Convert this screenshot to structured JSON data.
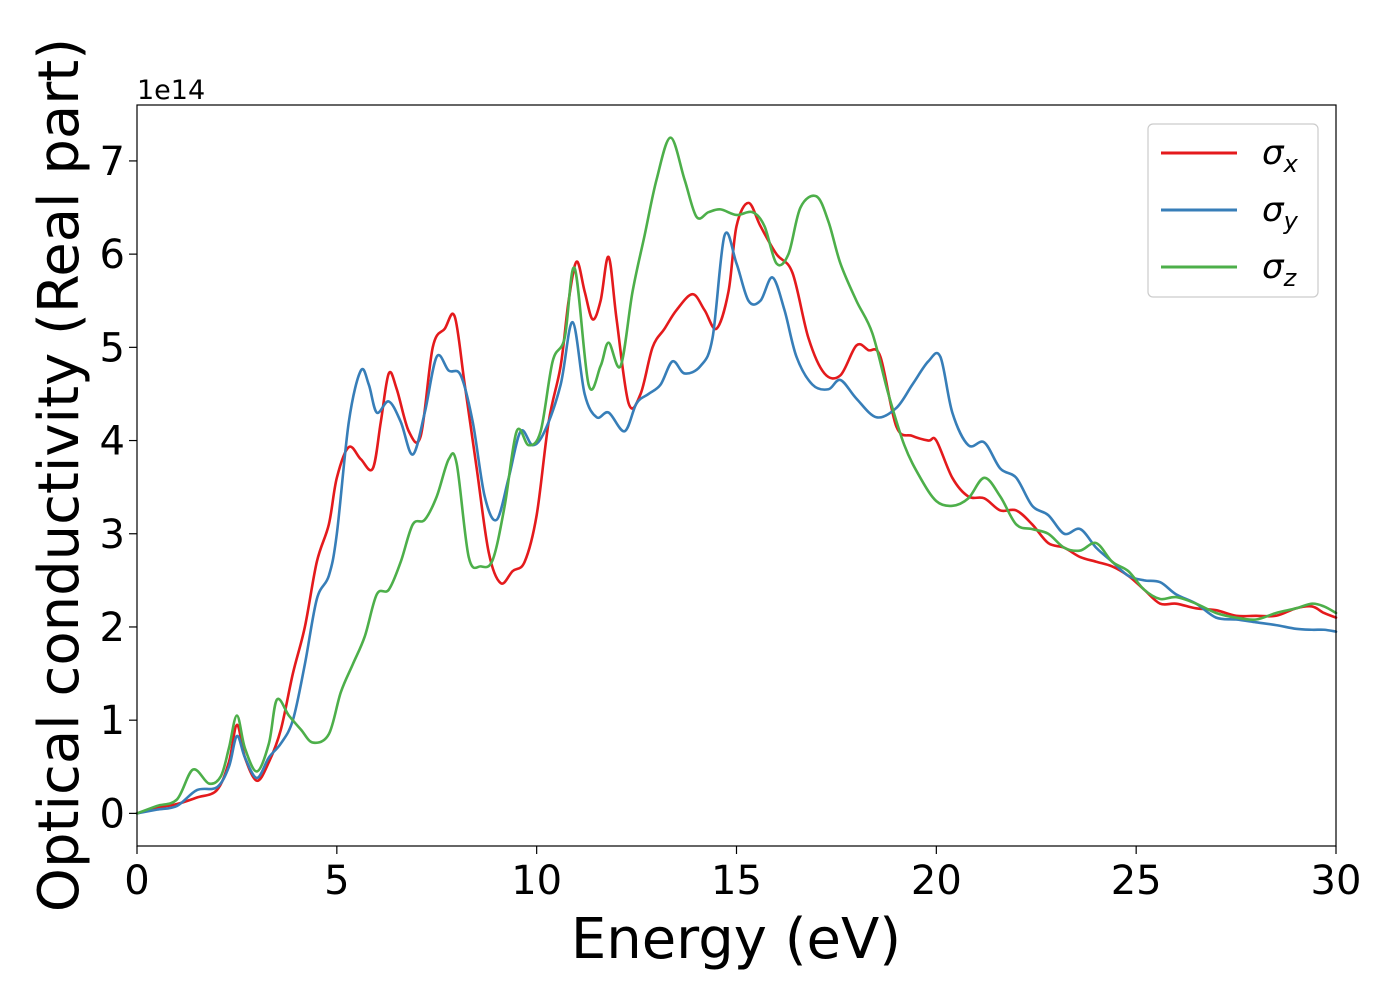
{
  "chart_data": {
    "type": "line",
    "xlabel": "Energy (eV)",
    "ylabel": "Optical conductivity (Real part)",
    "y_offset_label": "1e14",
    "xlim": [
      0,
      30
    ],
    "ylim": [
      -0.35,
      7.6
    ],
    "x_ticks": [
      0,
      5,
      10,
      15,
      20,
      25,
      30
    ],
    "y_ticks": [
      0,
      1,
      2,
      3,
      4,
      5,
      6,
      7
    ],
    "grid": false,
    "legend_position": "top-right",
    "series": [
      {
        "name": "σ",
        "subscript": "x",
        "color": "#e41a1c",
        "points": [
          [
            0,
            0
          ],
          [
            0.5,
            0.06
          ],
          [
            1,
            0.1
          ],
          [
            1.5,
            0.17
          ],
          [
            2,
            0.25
          ],
          [
            2.3,
            0.55
          ],
          [
            2.5,
            0.95
          ],
          [
            2.7,
            0.6
          ],
          [
            3,
            0.35
          ],
          [
            3.3,
            0.55
          ],
          [
            3.6,
            0.9
          ],
          [
            3.9,
            1.5
          ],
          [
            4.2,
            2
          ],
          [
            4.5,
            2.7
          ],
          [
            4.8,
            3.1
          ],
          [
            5.0,
            3.6
          ],
          [
            5.3,
            3.93
          ],
          [
            5.6,
            3.8
          ],
          [
            5.9,
            3.7
          ],
          [
            6.1,
            4.2
          ],
          [
            6.3,
            4.72
          ],
          [
            6.5,
            4.55
          ],
          [
            6.8,
            4.1
          ],
          [
            7.1,
            4.05
          ],
          [
            7.4,
            5.0
          ],
          [
            7.7,
            5.2
          ],
          [
            7.95,
            5.33
          ],
          [
            8.2,
            4.6
          ],
          [
            8.5,
            3.7
          ],
          [
            8.8,
            2.8
          ],
          [
            9.1,
            2.47
          ],
          [
            9.4,
            2.6
          ],
          [
            9.7,
            2.7
          ],
          [
            10.0,
            3.2
          ],
          [
            10.3,
            4.2
          ],
          [
            10.6,
            4.8
          ],
          [
            10.8,
            5.5
          ],
          [
            11.0,
            5.92
          ],
          [
            11.2,
            5.6
          ],
          [
            11.4,
            5.3
          ],
          [
            11.6,
            5.5
          ],
          [
            11.8,
            5.97
          ],
          [
            12.0,
            5.3
          ],
          [
            12.3,
            4.4
          ],
          [
            12.6,
            4.5
          ],
          [
            12.9,
            5.0
          ],
          [
            13.2,
            5.2
          ],
          [
            13.5,
            5.4
          ],
          [
            13.9,
            5.57
          ],
          [
            14.2,
            5.4
          ],
          [
            14.5,
            5.2
          ],
          [
            14.8,
            5.6
          ],
          [
            15.0,
            6.3
          ],
          [
            15.3,
            6.55
          ],
          [
            15.6,
            6.3
          ],
          [
            16.0,
            6.0
          ],
          [
            16.4,
            5.8
          ],
          [
            16.8,
            5.1
          ],
          [
            17.2,
            4.72
          ],
          [
            17.6,
            4.7
          ],
          [
            18.0,
            5.02
          ],
          [
            18.3,
            4.97
          ],
          [
            18.6,
            4.9
          ],
          [
            19.0,
            4.15
          ],
          [
            19.4,
            4.05
          ],
          [
            19.8,
            4.0
          ],
          [
            20.0,
            4.0
          ],
          [
            20.4,
            3.6
          ],
          [
            20.8,
            3.4
          ],
          [
            21.2,
            3.38
          ],
          [
            21.6,
            3.25
          ],
          [
            22.0,
            3.25
          ],
          [
            22.4,
            3.1
          ],
          [
            22.8,
            2.9
          ],
          [
            23.2,
            2.85
          ],
          [
            23.6,
            2.75
          ],
          [
            24.0,
            2.7
          ],
          [
            24.4,
            2.65
          ],
          [
            24.8,
            2.55
          ],
          [
            25.2,
            2.4
          ],
          [
            25.6,
            2.25
          ],
          [
            26.0,
            2.25
          ],
          [
            26.5,
            2.2
          ],
          [
            27.0,
            2.18
          ],
          [
            27.5,
            2.12
          ],
          [
            28.0,
            2.12
          ],
          [
            28.5,
            2.12
          ],
          [
            29.0,
            2.2
          ],
          [
            29.4,
            2.22
          ],
          [
            29.7,
            2.15
          ],
          [
            30.0,
            2.1
          ]
        ]
      },
      {
        "name": "σ",
        "subscript": "y",
        "color": "#377eb8",
        "points": [
          [
            0,
            0
          ],
          [
            0.5,
            0.04
          ],
          [
            1,
            0.08
          ],
          [
            1.5,
            0.25
          ],
          [
            2,
            0.28
          ],
          [
            2.3,
            0.5
          ],
          [
            2.5,
            0.83
          ],
          [
            2.7,
            0.6
          ],
          [
            3,
            0.38
          ],
          [
            3.3,
            0.6
          ],
          [
            3.6,
            0.75
          ],
          [
            3.9,
            1.0
          ],
          [
            4.2,
            1.6
          ],
          [
            4.5,
            2.3
          ],
          [
            4.8,
            2.55
          ],
          [
            5.0,
            3.0
          ],
          [
            5.3,
            4.2
          ],
          [
            5.6,
            4.75
          ],
          [
            5.8,
            4.6
          ],
          [
            6.0,
            4.3
          ],
          [
            6.3,
            4.42
          ],
          [
            6.6,
            4.2
          ],
          [
            6.9,
            3.85
          ],
          [
            7.2,
            4.3
          ],
          [
            7.5,
            4.9
          ],
          [
            7.8,
            4.75
          ],
          [
            8.1,
            4.7
          ],
          [
            8.4,
            4.2
          ],
          [
            8.7,
            3.4
          ],
          [
            9.0,
            3.15
          ],
          [
            9.3,
            3.6
          ],
          [
            9.6,
            4.1
          ],
          [
            9.9,
            3.95
          ],
          [
            10.2,
            4.1
          ],
          [
            10.6,
            4.6
          ],
          [
            10.9,
            5.27
          ],
          [
            11.2,
            4.5
          ],
          [
            11.5,
            4.25
          ],
          [
            11.8,
            4.3
          ],
          [
            12.2,
            4.1
          ],
          [
            12.5,
            4.4
          ],
          [
            12.8,
            4.5
          ],
          [
            13.1,
            4.6
          ],
          [
            13.4,
            4.85
          ],
          [
            13.7,
            4.72
          ],
          [
            14.1,
            4.8
          ],
          [
            14.4,
            5.1
          ],
          [
            14.7,
            6.2
          ],
          [
            15.0,
            5.9
          ],
          [
            15.3,
            5.5
          ],
          [
            15.6,
            5.5
          ],
          [
            15.9,
            5.75
          ],
          [
            16.2,
            5.4
          ],
          [
            16.5,
            4.9
          ],
          [
            16.9,
            4.6
          ],
          [
            17.3,
            4.55
          ],
          [
            17.6,
            4.65
          ],
          [
            18.0,
            4.45
          ],
          [
            18.5,
            4.25
          ],
          [
            19.0,
            4.35
          ],
          [
            19.4,
            4.6
          ],
          [
            19.8,
            4.85
          ],
          [
            20.1,
            4.9
          ],
          [
            20.4,
            4.3
          ],
          [
            20.8,
            3.95
          ],
          [
            21.2,
            3.98
          ],
          [
            21.6,
            3.7
          ],
          [
            22.0,
            3.6
          ],
          [
            22.4,
            3.3
          ],
          [
            22.8,
            3.2
          ],
          [
            23.2,
            3.0
          ],
          [
            23.6,
            3.05
          ],
          [
            24.0,
            2.85
          ],
          [
            24.4,
            2.7
          ],
          [
            24.8,
            2.55
          ],
          [
            25.2,
            2.5
          ],
          [
            25.6,
            2.48
          ],
          [
            26.0,
            2.35
          ],
          [
            26.5,
            2.25
          ],
          [
            27.0,
            2.1
          ],
          [
            27.5,
            2.08
          ],
          [
            28.0,
            2.05
          ],
          [
            28.5,
            2.02
          ],
          [
            29.0,
            1.98
          ],
          [
            29.4,
            1.97
          ],
          [
            29.7,
            1.97
          ],
          [
            30.0,
            1.95
          ]
        ]
      },
      {
        "name": "σ",
        "subscript": "z",
        "color": "#4daf4a",
        "points": [
          [
            0,
            0
          ],
          [
            0.5,
            0.08
          ],
          [
            1,
            0.15
          ],
          [
            1.4,
            0.47
          ],
          [
            1.8,
            0.32
          ],
          [
            2.1,
            0.4
          ],
          [
            2.3,
            0.7
          ],
          [
            2.5,
            1.05
          ],
          [
            2.7,
            0.7
          ],
          [
            3.0,
            0.45
          ],
          [
            3.3,
            0.75
          ],
          [
            3.5,
            1.22
          ],
          [
            3.8,
            1.05
          ],
          [
            4.1,
            0.9
          ],
          [
            4.4,
            0.76
          ],
          [
            4.8,
            0.85
          ],
          [
            5.1,
            1.3
          ],
          [
            5.4,
            1.6
          ],
          [
            5.7,
            1.9
          ],
          [
            6.0,
            2.35
          ],
          [
            6.3,
            2.4
          ],
          [
            6.6,
            2.7
          ],
          [
            6.9,
            3.1
          ],
          [
            7.2,
            3.15
          ],
          [
            7.5,
            3.4
          ],
          [
            7.8,
            3.8
          ],
          [
            8.0,
            3.75
          ],
          [
            8.3,
            2.75
          ],
          [
            8.6,
            2.65
          ],
          [
            8.9,
            2.72
          ],
          [
            9.2,
            3.3
          ],
          [
            9.5,
            4.1
          ],
          [
            9.8,
            3.95
          ],
          [
            10.1,
            4.1
          ],
          [
            10.4,
            4.85
          ],
          [
            10.7,
            5.1
          ],
          [
            10.95,
            5.85
          ],
          [
            11.3,
            4.6
          ],
          [
            11.6,
            4.8
          ],
          [
            11.8,
            5.05
          ],
          [
            12.1,
            4.8
          ],
          [
            12.4,
            5.6
          ],
          [
            12.7,
            6.2
          ],
          [
            13.0,
            6.8
          ],
          [
            13.35,
            7.25
          ],
          [
            13.7,
            6.8
          ],
          [
            14.0,
            6.4
          ],
          [
            14.3,
            6.45
          ],
          [
            14.6,
            6.48
          ],
          [
            15.0,
            6.42
          ],
          [
            15.4,
            6.45
          ],
          [
            15.7,
            6.3
          ],
          [
            16.0,
            5.9
          ],
          [
            16.3,
            6.0
          ],
          [
            16.6,
            6.5
          ],
          [
            17.0,
            6.62
          ],
          [
            17.3,
            6.35
          ],
          [
            17.6,
            5.9
          ],
          [
            18.0,
            5.5
          ],
          [
            18.4,
            5.15
          ],
          [
            18.8,
            4.5
          ],
          [
            19.2,
            3.95
          ],
          [
            19.6,
            3.6
          ],
          [
            20.0,
            3.35
          ],
          [
            20.4,
            3.3
          ],
          [
            20.8,
            3.38
          ],
          [
            21.2,
            3.6
          ],
          [
            21.6,
            3.4
          ],
          [
            22.0,
            3.1
          ],
          [
            22.4,
            3.05
          ],
          [
            22.8,
            3.0
          ],
          [
            23.2,
            2.85
          ],
          [
            23.6,
            2.82
          ],
          [
            24.0,
            2.9
          ],
          [
            24.4,
            2.7
          ],
          [
            24.8,
            2.6
          ],
          [
            25.2,
            2.4
          ],
          [
            25.6,
            2.3
          ],
          [
            26.0,
            2.32
          ],
          [
            26.5,
            2.25
          ],
          [
            27.0,
            2.15
          ],
          [
            27.5,
            2.1
          ],
          [
            28.0,
            2.08
          ],
          [
            28.5,
            2.15
          ],
          [
            29.0,
            2.2
          ],
          [
            29.4,
            2.25
          ],
          [
            29.7,
            2.22
          ],
          [
            30.0,
            2.15
          ]
        ]
      }
    ]
  }
}
